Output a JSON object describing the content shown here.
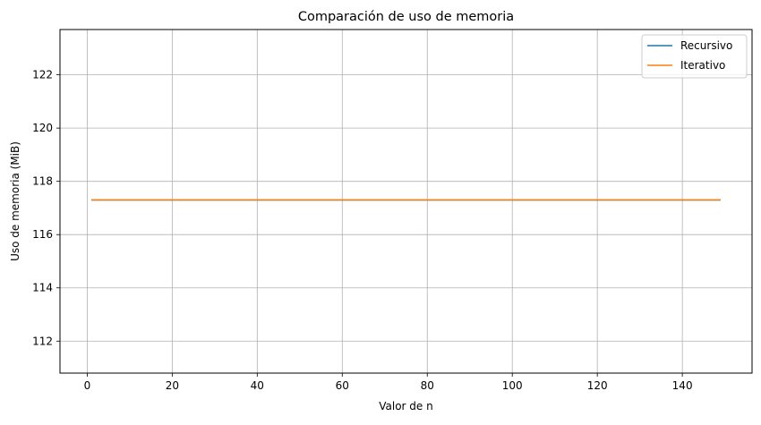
{
  "chart_data": {
    "type": "line",
    "title": "Comparación de uso de memoria",
    "xlabel": "Valor de n",
    "ylabel": "Uso de memoria (MiB)",
    "xlim": [
      -6.4,
      156.4
    ],
    "ylim": [
      110.8,
      123.7
    ],
    "xticks": [
      0,
      20,
      40,
      60,
      80,
      100,
      120,
      140
    ],
    "yticks": [
      112,
      114,
      116,
      118,
      120,
      122
    ],
    "grid": true,
    "legend_position": "top-right",
    "series": [
      {
        "name": "Recursivo",
        "color": "#1f77b4",
        "x": [
          1,
          149
        ],
        "y": [
          117.3,
          117.3
        ]
      },
      {
        "name": "Iterativo",
        "color": "#ff7f0e",
        "x": [
          1,
          149
        ],
        "y": [
          117.3,
          117.3
        ]
      }
    ]
  },
  "colors": {
    "grid": "#b0b0b0",
    "axes": "#000000",
    "legend_border": "#cccccc"
  }
}
